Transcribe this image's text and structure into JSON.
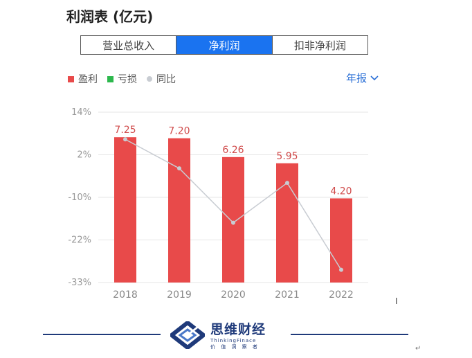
{
  "title": "利润表 (亿元)",
  "tabs": [
    {
      "label": "营业总收入",
      "active": false
    },
    {
      "label": "净利润",
      "active": true
    },
    {
      "label": "扣非净利润",
      "active": false
    }
  ],
  "legend": [
    {
      "label": "盈利",
      "color": "#e84a4a",
      "marker": "square"
    },
    {
      "label": "亏损",
      "color": "#2db84d",
      "marker": "square"
    },
    {
      "label": "同比",
      "color": "#c8ccd2",
      "marker": "circle"
    }
  ],
  "period_selector": {
    "label": "年报"
  },
  "chart_data": {
    "type": "bar",
    "categories": [
      "2018",
      "2019",
      "2020",
      "2021",
      "2022"
    ],
    "series": [
      {
        "values": [
          7.25,
          7.2,
          6.26,
          5.95,
          4.2
        ],
        "data_labels": [
          "7.25",
          "7.20",
          "6.26",
          "5.95",
          "4.20"
        ],
        "color": "#e84a4a"
      },
      {
        "values": [
          6.5,
          -1.5,
          -16.5,
          -5.5,
          -29.5
        ],
        "color": "#c8ccd2",
        "kind": "line"
      }
    ],
    "y_ticks": [
      "14%",
      "2%",
      "-10%",
      "-22%",
      "-33%"
    ],
    "ylim": [
      -33,
      14
    ],
    "bar_range": [
      0,
      8.5
    ],
    "grid": true
  },
  "footer": {
    "brand": "思维财经",
    "brand_en": "ThinkingFinace",
    "slogan": "价 值 洞 察 者"
  }
}
